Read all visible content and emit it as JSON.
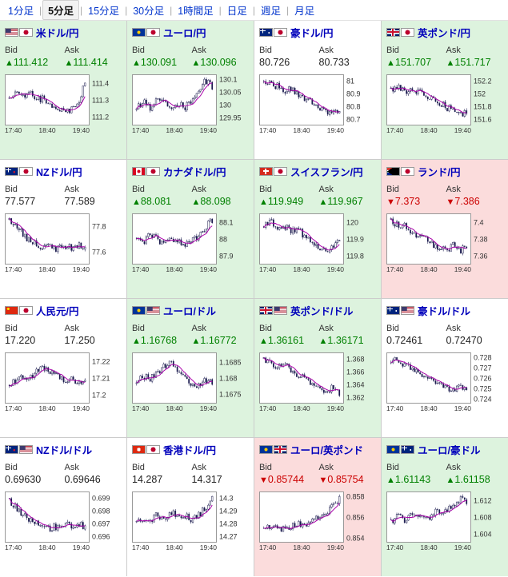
{
  "tabs": {
    "separator": "|",
    "items": [
      {
        "label": "1分足",
        "selected": false
      },
      {
        "label": "5分足",
        "selected": true
      },
      {
        "label": "15分足",
        "selected": false
      },
      {
        "label": "30分足",
        "selected": false
      },
      {
        "label": "1時間足",
        "selected": false
      },
      {
        "label": "日足",
        "selected": false
      },
      {
        "label": "週足",
        "selected": false
      },
      {
        "label": "月足",
        "selected": false
      }
    ]
  },
  "labels": {
    "bid": "Bid",
    "ask": "Ask"
  },
  "colors": {
    "up_bg": "#ddf3de",
    "down_bg": "#fbdcdc",
    "flat_bg": "#ffffff",
    "up_text": "#008000",
    "down_text": "#cc0000",
    "flat_text": "#222222",
    "pair_text": "#0000bb",
    "ma_line": "#aa00aa",
    "candle": "#1a1a4e"
  },
  "panels": [
    {
      "pair": "米ドル/円",
      "flags": [
        "us",
        "jp"
      ],
      "state": "up",
      "bid_arrow": "▲",
      "bid": "111.412",
      "ask_arrow": "▲",
      "ask": "111.414",
      "chart": {
        "type": "candlestick",
        "x_ticks": [
          "17:40",
          "18:40",
          "19:40"
        ],
        "y_ticks": [
          "111.4",
          "111.3",
          "111.2"
        ],
        "y_min": 111.15,
        "y_max": 111.45,
        "anchors": [
          0.55,
          0.7,
          0.6,
          0.65,
          0.5,
          0.55,
          0.4,
          0.3,
          0.25,
          0.3,
          0.45,
          0.88
        ]
      }
    },
    {
      "pair": "ユーロ/円",
      "flags": [
        "eu",
        "jp"
      ],
      "state": "up",
      "bid_arrow": "▲",
      "bid": "130.091",
      "ask_arrow": "▲",
      "ask": "130.096",
      "chart": {
        "type": "candlestick",
        "x_ticks": [
          "17:40",
          "18:40",
          "19:40"
        ],
        "y_ticks": [
          "130.1",
          "130.05",
          "130",
          "129.95"
        ],
        "y_min": 129.92,
        "y_max": 130.12,
        "anchors": [
          0.35,
          0.45,
          0.3,
          0.5,
          0.4,
          0.35,
          0.45,
          0.3,
          0.5,
          0.75,
          0.95,
          0.8
        ]
      }
    },
    {
      "pair": "豪ドル/円",
      "flags": [
        "au",
        "jp"
      ],
      "state": "flat",
      "bid_arrow": "",
      "bid": "80.726",
      "ask_arrow": "",
      "ask": "80.733",
      "chart": {
        "type": "candlestick",
        "x_ticks": [
          "17:40",
          "18:40",
          "19:40"
        ],
        "y_ticks": [
          "81",
          "80.9",
          "80.8",
          "80.7"
        ],
        "y_min": 80.65,
        "y_max": 81.05,
        "anchors": [
          0.92,
          0.85,
          0.8,
          0.7,
          0.75,
          0.6,
          0.5,
          0.45,
          0.3,
          0.2,
          0.3,
          0.25
        ]
      }
    },
    {
      "pair": "英ポンド/円",
      "flags": [
        "gb",
        "jp"
      ],
      "state": "up",
      "bid_arrow": "▲",
      "bid": "151.707",
      "ask_arrow": "▲",
      "ask": "151.717",
      "chart": {
        "type": "candlestick",
        "x_ticks": [
          "17:40",
          "18:40",
          "19:40"
        ],
        "y_ticks": [
          "152.2",
          "152",
          "151.8",
          "151.6"
        ],
        "y_min": 151.5,
        "y_max": 152.3,
        "anchors": [
          0.7,
          0.8,
          0.65,
          0.75,
          0.7,
          0.55,
          0.6,
          0.45,
          0.35,
          0.25,
          0.15,
          0.2
        ]
      }
    },
    {
      "pair": "NZドル/円",
      "flags": [
        "nz",
        "jp"
      ],
      "state": "flat",
      "bid_arrow": "",
      "bid": "77.577",
      "ask_arrow": "",
      "ask": "77.589",
      "chart": {
        "type": "candlestick",
        "x_ticks": [
          "17:40",
          "18:40",
          "19:40"
        ],
        "y_ticks": [
          "77.8",
          "77.6"
        ],
        "y_min": 77.5,
        "y_max": 77.9,
        "anchors": [
          0.9,
          0.75,
          0.6,
          0.45,
          0.4,
          0.3,
          0.35,
          0.28,
          0.33,
          0.3,
          0.35,
          0.35
        ]
      }
    },
    {
      "pair": "カナダドル/円",
      "flags": [
        "ca",
        "jp"
      ],
      "state": "up",
      "bid_arrow": "▲",
      "bid": "88.081",
      "ask_arrow": "▲",
      "ask": "88.098",
      "chart": {
        "type": "candlestick",
        "x_ticks": [
          "17:40",
          "18:40",
          "19:40"
        ],
        "y_ticks": [
          "88.1",
          "88",
          "87.9"
        ],
        "y_min": 87.85,
        "y_max": 88.15,
        "anchors": [
          0.55,
          0.45,
          0.6,
          0.5,
          0.4,
          0.5,
          0.45,
          0.35,
          0.45,
          0.55,
          0.75,
          0.92
        ]
      }
    },
    {
      "pair": "スイスフラン/円",
      "flags": [
        "ch",
        "jp"
      ],
      "state": "up",
      "bid_arrow": "▲",
      "bid": "119.949",
      "ask_arrow": "▲",
      "ask": "119.967",
      "chart": {
        "type": "candlestick",
        "x_ticks": [
          "17:40",
          "18:40",
          "19:40"
        ],
        "y_ticks": [
          "120",
          "119.9",
          "119.8"
        ],
        "y_min": 119.75,
        "y_max": 120.05,
        "anchors": [
          0.8,
          0.9,
          0.75,
          0.8,
          0.65,
          0.7,
          0.55,
          0.45,
          0.3,
          0.22,
          0.35,
          0.5
        ]
      }
    },
    {
      "pair": "ランド/円",
      "flags": [
        "za",
        "jp"
      ],
      "state": "down",
      "bid_arrow": "▼",
      "bid": "7.373",
      "ask_arrow": "▼",
      "ask": "7.386",
      "chart": {
        "type": "candlestick",
        "x_ticks": [
          "17:40",
          "18:40",
          "19:40"
        ],
        "y_ticks": [
          "7.4",
          "7.38",
          "7.36"
        ],
        "y_min": 7.35,
        "y_max": 7.41,
        "anchors": [
          0.88,
          0.8,
          0.85,
          0.6,
          0.5,
          0.55,
          0.4,
          0.3,
          0.22,
          0.35,
          0.25,
          0.3
        ]
      }
    },
    {
      "pair": "人民元/円",
      "flags": [
        "cn",
        "jp"
      ],
      "state": "flat",
      "bid_arrow": "",
      "bid": "17.220",
      "ask_arrow": "",
      "ask": "17.250",
      "chart": {
        "type": "candlestick",
        "x_ticks": [
          "17:40",
          "18:40",
          "19:40"
        ],
        "y_ticks": [
          "17.22",
          "17.21",
          "17.2"
        ],
        "y_min": 17.195,
        "y_max": 17.225,
        "anchors": [
          0.35,
          0.45,
          0.55,
          0.5,
          0.65,
          0.75,
          0.6,
          0.55,
          0.45,
          0.5,
          0.4,
          0.45
        ]
      }
    },
    {
      "pair": "ユーロ/ドル",
      "flags": [
        "eu",
        "us"
      ],
      "state": "up",
      "bid_arrow": "▲",
      "bid": "1.16768",
      "ask_arrow": "▲",
      "ask": "1.16772",
      "chart": {
        "type": "candlestick",
        "x_ticks": [
          "17:40",
          "18:40",
          "19:40"
        ],
        "y_ticks": [
          "1.1685",
          "1.168",
          "1.1675"
        ],
        "y_min": 1.1672,
        "y_max": 1.1688,
        "anchors": [
          0.45,
          0.55,
          0.5,
          0.65,
          0.75,
          0.85,
          0.7,
          0.5,
          0.35,
          0.3,
          0.45,
          0.4
        ]
      }
    },
    {
      "pair": "英ポンド/ドル",
      "flags": [
        "gb",
        "us"
      ],
      "state": "up",
      "bid_arrow": "▲",
      "bid": "1.36161",
      "ask_arrow": "▲",
      "ask": "1.36171",
      "chart": {
        "type": "candlestick",
        "x_ticks": [
          "17:40",
          "18:40",
          "19:40"
        ],
        "y_ticks": [
          "1.368",
          "1.366",
          "1.364",
          "1.362"
        ],
        "y_min": 1.361,
        "y_max": 1.369,
        "anchors": [
          0.92,
          0.85,
          0.75,
          0.8,
          0.65,
          0.55,
          0.5,
          0.4,
          0.3,
          0.22,
          0.3,
          0.18
        ]
      }
    },
    {
      "pair": "豪ドル/ドル",
      "flags": [
        "au",
        "us"
      ],
      "state": "flat",
      "bid_arrow": "",
      "bid": "0.72461",
      "ask_arrow": "",
      "ask": "0.72470",
      "chart": {
        "type": "candlestick",
        "x_ticks": [
          "17:40",
          "18:40",
          "19:40"
        ],
        "y_ticks": [
          "0.728",
          "0.727",
          "0.726",
          "0.725",
          "0.724"
        ],
        "y_min": 0.7235,
        "y_max": 0.7285,
        "anchors": [
          0.9,
          0.88,
          0.8,
          0.75,
          0.65,
          0.5,
          0.4,
          0.35,
          0.3,
          0.22,
          0.28,
          0.22
        ]
      }
    },
    {
      "pair": "NZドル/ドル",
      "flags": [
        "nz",
        "us"
      ],
      "state": "flat",
      "bid_arrow": "",
      "bid": "0.69630",
      "ask_arrow": "",
      "ask": "0.69646",
      "chart": {
        "type": "candlestick",
        "x_ticks": [
          "17:40",
          "18:40",
          "19:40"
        ],
        "y_ticks": [
          "0.699",
          "0.698",
          "0.697",
          "0.696"
        ],
        "y_min": 0.6955,
        "y_max": 0.6995,
        "anchors": [
          0.88,
          0.7,
          0.55,
          0.45,
          0.35,
          0.3,
          0.25,
          0.3,
          0.35,
          0.28,
          0.33,
          0.3
        ]
      }
    },
    {
      "pair": "香港ドル/円",
      "flags": [
        "hk",
        "jp"
      ],
      "state": "flat",
      "bid_arrow": "",
      "bid": "14.287",
      "ask_arrow": "",
      "ask": "14.317",
      "chart": {
        "type": "candlestick",
        "x_ticks": [
          "17:40",
          "18:40",
          "19:40"
        ],
        "y_ticks": [
          "14.3",
          "14.29",
          "14.28",
          "14.27"
        ],
        "y_min": 14.265,
        "y_max": 14.305,
        "anchors": [
          0.35,
          0.5,
          0.4,
          0.55,
          0.45,
          0.6,
          0.5,
          0.55,
          0.45,
          0.55,
          0.7,
          0.9
        ]
      }
    },
    {
      "pair": "ユーロ/英ポンド",
      "flags": [
        "eu",
        "gb"
      ],
      "state": "down",
      "bid_arrow": "▼",
      "bid": "0.85744",
      "ask_arrow": "▼",
      "ask": "0.85754",
      "chart": {
        "type": "candlestick",
        "x_ticks": [
          "17:40",
          "18:40",
          "19:40"
        ],
        "y_ticks": [
          "0.858",
          "0.856",
          "0.854"
        ],
        "y_min": 0.8535,
        "y_max": 0.8585,
        "anchors": [
          0.3,
          0.25,
          0.3,
          0.22,
          0.3,
          0.35,
          0.3,
          0.4,
          0.5,
          0.6,
          0.75,
          0.92
        ]
      }
    },
    {
      "pair": "ユーロ/豪ドル",
      "flags": [
        "eu",
        "au"
      ],
      "state": "up",
      "bid_arrow": "▲",
      "bid": "1.61143",
      "ask_arrow": "▲",
      "ask": "1.61158",
      "chart": {
        "type": "candlestick",
        "x_ticks": [
          "17:40",
          "18:40",
          "19:40"
        ],
        "y_ticks": [
          "1.612",
          "1.608",
          "1.604"
        ],
        "y_min": 1.602,
        "y_max": 1.614,
        "anchors": [
          0.4,
          0.5,
          0.45,
          0.55,
          0.5,
          0.45,
          0.55,
          0.65,
          0.6,
          0.75,
          0.9,
          0.82
        ]
      }
    }
  ]
}
